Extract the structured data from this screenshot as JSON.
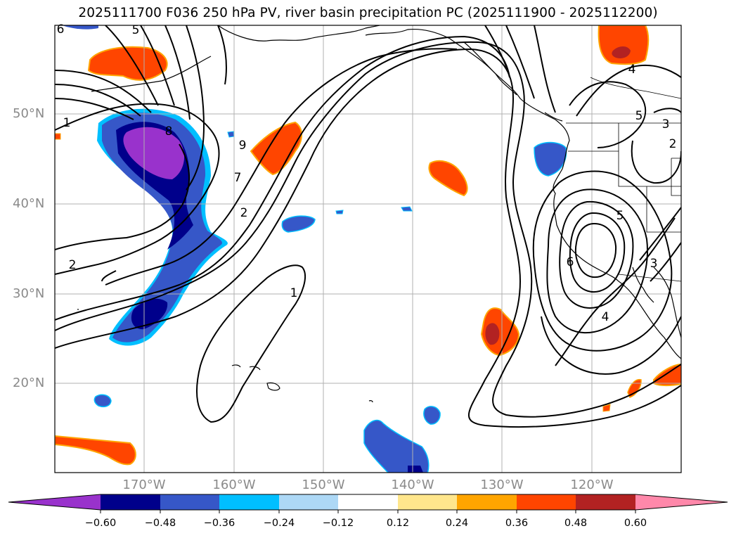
{
  "title": "2025111700 F036 250 hPa PV, river basin precipitation PC (2025111900 - 2025112200)",
  "latitude_labels": [
    "50°N",
    "40°N",
    "30°N",
    "20°N"
  ],
  "longitude_labels": [
    "170°W",
    "160°W",
    "150°W",
    "140°W",
    "130°W",
    "120°W"
  ],
  "colorbar": {
    "tick_labels": [
      "−0.60",
      "−0.48",
      "−0.36",
      "−0.24",
      "−0.12",
      "0.12",
      "0.24",
      "0.36",
      "0.48",
      "0.60"
    ],
    "colors": [
      "#9932cc",
      "#00008b",
      "#3657c8",
      "#00bfff",
      "#add8f6",
      "#ffffff",
      "#ffe68c",
      "#ffa500",
      "#ff4500",
      "#b22222",
      "#ff88aa"
    ]
  },
  "contour_labels": [
    "6",
    "5",
    "1",
    "8",
    "9",
    "7",
    "2",
    "2",
    "1",
    "4",
    "5",
    "3",
    "2",
    "5",
    "6",
    "4",
    "3"
  ],
  "colors": {
    "negative_outline": "#00bfff",
    "positive_outline": "#ffa500",
    "grid": "#b0b0b0"
  }
}
